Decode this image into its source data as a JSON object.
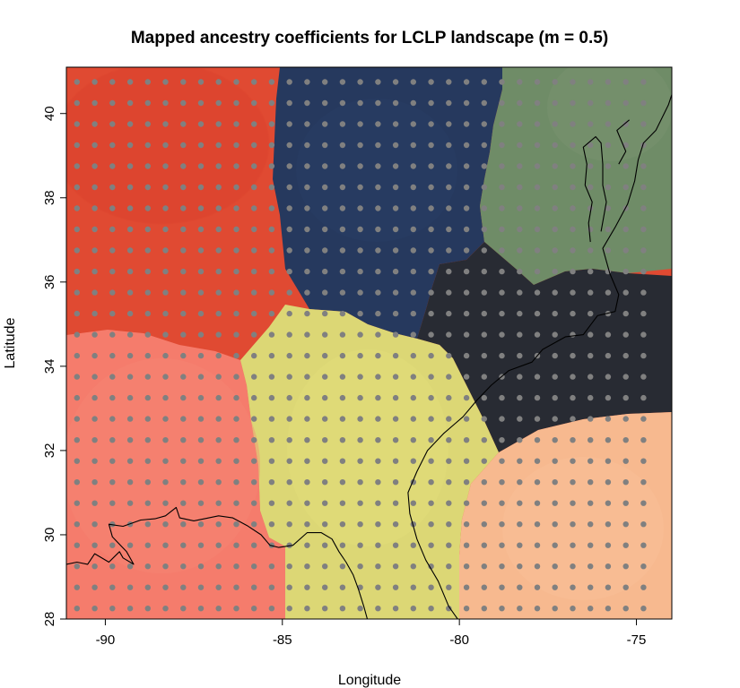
{
  "figure": {
    "title": "Mapped ancestry coefficients for LCLP landscape (m = 0.5)",
    "xlabel": "Longitude",
    "ylabel": "Latitude",
    "x_ticks": [
      {
        "value": -90,
        "label": "-90"
      },
      {
        "value": -85,
        "label": "-85"
      },
      {
        "value": -80,
        "label": "-80"
      },
      {
        "value": -75,
        "label": "-75"
      }
    ],
    "y_ticks": [
      {
        "value": 28,
        "label": "28"
      },
      {
        "value": 30,
        "label": "30"
      },
      {
        "value": 32,
        "label": "32"
      },
      {
        "value": 34,
        "label": "34"
      },
      {
        "value": 36,
        "label": "36"
      },
      {
        "value": 38,
        "label": "38"
      },
      {
        "value": 40,
        "label": "40"
      }
    ],
    "xlim": [
      -91.1,
      -74
    ],
    "ylim": [
      28,
      41.1
    ]
  },
  "map": {
    "ancestry_clusters": [
      {
        "id": "red",
        "color": "#e04a32",
        "extent": {
          "lon": [
            -91.1,
            -84.5
          ],
          "lat": [
            34.7,
            41.1
          ]
        }
      },
      {
        "id": "navy",
        "color": "#26395e",
        "extent": {
          "lon": [
            -85.0,
            -77.9
          ],
          "lat": [
            34.1,
            41.1
          ]
        }
      },
      {
        "id": "sage",
        "color": "#6f8c67",
        "extent": {
          "lon": [
            -79.3,
            -74.0
          ],
          "lat": [
            35.9,
            41.1
          ]
        }
      },
      {
        "id": "charcoal",
        "color": "#282b33",
        "extent": {
          "lon": [
            -80.7,
            -74.0
          ],
          "lat": [
            32.0,
            36.5
          ]
        }
      },
      {
        "id": "salmon",
        "color": "#f57c6c",
        "extent": {
          "lon": [
            -91.1,
            -85.1
          ],
          "lat": [
            28.0,
            34.8
          ]
        }
      },
      {
        "id": "yellow",
        "color": "#dcd775",
        "extent": {
          "lon": [
            -86.3,
            -79.5
          ],
          "lat": [
            28.0,
            35.3
          ]
        }
      },
      {
        "id": "peach",
        "color": "#f7b98f",
        "extent": {
          "lon": [
            -80.1,
            -74.0
          ],
          "lat": [
            28.0,
            32.9
          ]
        }
      }
    ],
    "sampling_grid": {
      "lon_start": -90.8,
      "lon_step": 0.5,
      "lon_count": 33,
      "lat_start": 28.25,
      "lat_step": 0.5,
      "lat_count": 26,
      "color": "#808080"
    },
    "coastline": {
      "color": "#000000",
      "gulf_coast": [
        [
          -91.1,
          29.3
        ],
        [
          -90.8,
          29.35
        ],
        [
          -90.5,
          29.3
        ],
        [
          -90.3,
          29.55
        ],
        [
          -89.9,
          29.35
        ],
        [
          -89.6,
          29.6
        ],
        [
          -89.5,
          29.45
        ],
        [
          -89.2,
          29.3
        ],
        [
          -89.4,
          29.6
        ],
        [
          -89.8,
          29.95
        ],
        [
          -89.9,
          30.25
        ],
        [
          -89.5,
          30.2
        ],
        [
          -89.0,
          30.35
        ],
        [
          -88.6,
          30.38
        ],
        [
          -88.3,
          30.45
        ],
        [
          -88.0,
          30.65
        ],
        [
          -87.9,
          30.4
        ],
        [
          -87.5,
          30.33
        ],
        [
          -87.2,
          30.38
        ],
        [
          -86.8,
          30.45
        ],
        [
          -86.4,
          30.4
        ],
        [
          -86.0,
          30.22
        ],
        [
          -85.6,
          30.0
        ],
        [
          -85.35,
          29.75
        ],
        [
          -85.1,
          29.7
        ],
        [
          -84.7,
          29.75
        ],
        [
          -84.3,
          30.05
        ],
        [
          -83.9,
          30.05
        ],
        [
          -83.6,
          29.9
        ],
        [
          -83.4,
          29.6
        ],
        [
          -83.2,
          29.35
        ],
        [
          -83.0,
          29.05
        ],
        [
          -82.85,
          28.7
        ],
        [
          -82.7,
          28.3
        ],
        [
          -82.6,
          28.0
        ]
      ],
      "atlantic_coast": [
        [
          -80.05,
          28.0
        ],
        [
          -80.3,
          28.3
        ],
        [
          -80.6,
          28.9
        ],
        [
          -80.95,
          29.4
        ],
        [
          -81.2,
          29.9
        ],
        [
          -81.4,
          30.5
        ],
        [
          -81.45,
          31.0
        ],
        [
          -81.2,
          31.5
        ],
        [
          -80.9,
          32.0
        ],
        [
          -80.45,
          32.4
        ],
        [
          -79.9,
          32.8
        ],
        [
          -79.5,
          33.2
        ],
        [
          -79.1,
          33.55
        ],
        [
          -78.6,
          33.9
        ],
        [
          -77.95,
          34.1
        ],
        [
          -77.65,
          34.4
        ],
        [
          -77.0,
          34.7
        ],
        [
          -76.5,
          34.75
        ],
        [
          -76.1,
          35.2
        ],
        [
          -75.6,
          35.3
        ],
        [
          -75.5,
          35.7
        ],
        [
          -75.75,
          36.2
        ],
        [
          -75.95,
          36.8
        ],
        [
          -75.6,
          37.3
        ],
        [
          -75.25,
          37.85
        ],
        [
          -75.05,
          38.4
        ],
        [
          -74.95,
          38.9
        ],
        [
          -74.8,
          39.3
        ],
        [
          -74.45,
          39.6
        ],
        [
          -74.1,
          40.2
        ],
        [
          -74.0,
          40.45
        ]
      ],
      "chesapeake_bay": [
        [
          -76.3,
          36.95
        ],
        [
          -76.35,
          37.4
        ],
        [
          -76.25,
          37.9
        ],
        [
          -76.45,
          38.3
        ],
        [
          -76.4,
          38.8
        ],
        [
          -76.5,
          39.2
        ],
        [
          -76.15,
          39.45
        ],
        [
          -76.0,
          39.3
        ],
        [
          -75.95,
          38.8
        ],
        [
          -75.95,
          38.3
        ],
        [
          -75.85,
          37.9
        ],
        [
          -76.0,
          37.2
        ]
      ],
      "delaware_bay": [
        [
          -75.5,
          38.8
        ],
        [
          -75.3,
          39.1
        ],
        [
          -75.55,
          39.6
        ],
        [
          -75.2,
          39.85
        ]
      ],
      "florida_west": [
        [
          -82.6,
          28.0
        ],
        [
          -82.5,
          27.9
        ]
      ]
    }
  }
}
